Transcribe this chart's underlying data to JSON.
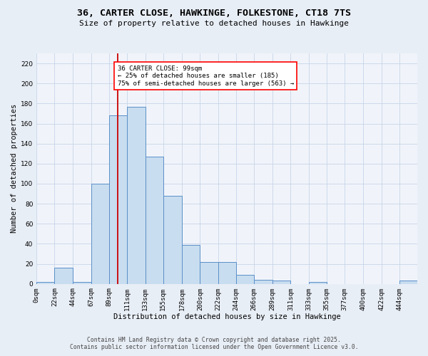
{
  "title_line1": "36, CARTER CLOSE, HAWKINGE, FOLKESTONE, CT18 7TS",
  "title_line2": "Size of property relative to detached houses in Hawkinge",
  "xlabel": "Distribution of detached houses by size in Hawkinge",
  "ylabel": "Number of detached properties",
  "bar_edges": [
    0,
    22,
    44,
    67,
    89,
    111,
    133,
    155,
    178,
    200,
    222,
    244,
    266,
    289,
    311,
    333,
    355,
    377,
    400,
    422,
    444
  ],
  "bar_heights": [
    2,
    16,
    2,
    100,
    168,
    177,
    127,
    88,
    39,
    22,
    22,
    9,
    4,
    3,
    0,
    2,
    0,
    0,
    0,
    0,
    3
  ],
  "tick_labels": [
    "0sqm",
    "22sqm",
    "44sqm",
    "67sqm",
    "89sqm",
    "111sqm",
    "133sqm",
    "155sqm",
    "178sqm",
    "200sqm",
    "222sqm",
    "244sqm",
    "266sqm",
    "289sqm",
    "311sqm",
    "333sqm",
    "355sqm",
    "377sqm",
    "400sqm",
    "422sqm",
    "444sqm"
  ],
  "bar_color": "#c8ddef",
  "bar_edge_color": "#5b8fc9",
  "bar_linewidth": 0.7,
  "vline_x": 99,
  "vline_color": "#cc0000",
  "vline_linewidth": 1.3,
  "annotation_text_line1": "36 CARTER CLOSE: 99sqm",
  "annotation_text_line2": "← 25% of detached houses are smaller (185)",
  "annotation_text_line3": "75% of semi-detached houses are larger (563) →",
  "annotation_fontsize": 6.5,
  "grid_color": "#c8d4e8",
  "background_color": "#e8eef6",
  "plot_bg_color": "#f0f4fa",
  "yticks": [
    0,
    20,
    40,
    60,
    80,
    100,
    120,
    140,
    160,
    180,
    200,
    220
  ],
  "ylim": [
    0,
    230
  ],
  "footer_line1": "Contains HM Land Registry data © Crown copyright and database right 2025.",
  "footer_line2": "Contains public sector information licensed under the Open Government Licence v3.0.",
  "footer_fontsize": 5.8,
  "title_fontsize1": 9.5,
  "title_fontsize2": 8.0,
  "xlabel_fontsize": 7.5,
  "ylabel_fontsize": 7.5,
  "tick_fontsize": 6.5
}
